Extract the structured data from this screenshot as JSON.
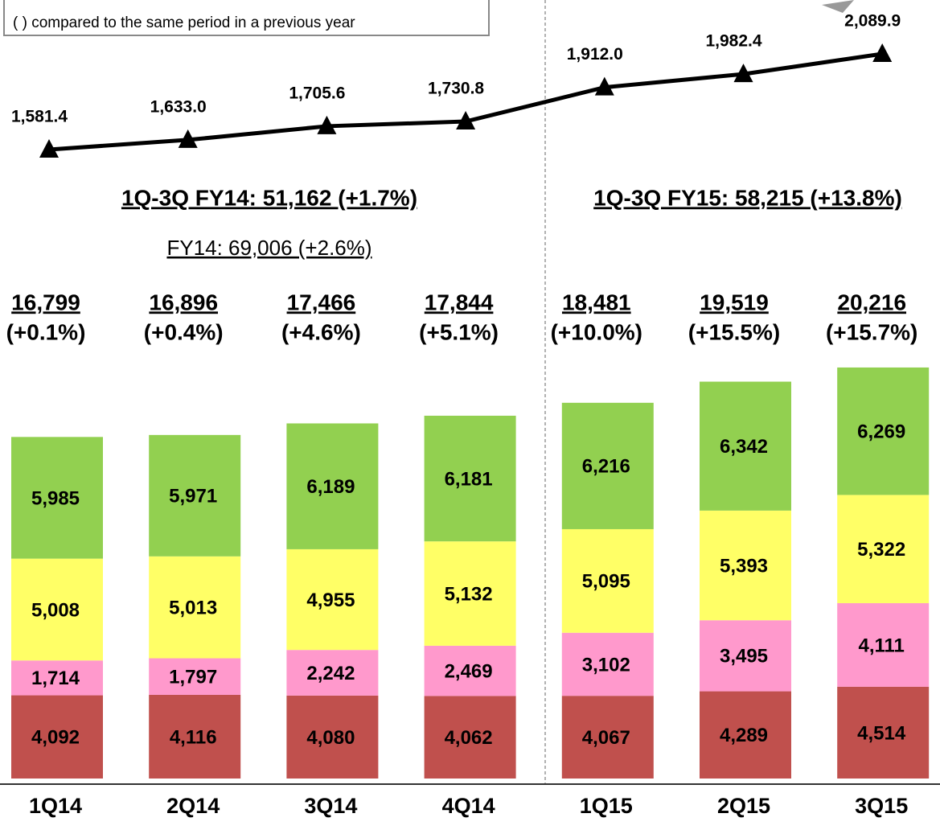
{
  "chart_data": {
    "type": "stacked_bar_line",
    "note": "(     ) compared to the same period in a previous year",
    "period_fy14": "1Q-3Q FY14: 51,162 (+1.7%)",
    "period_fy15": "1Q-3Q FY15: 58,215 (+13.8%)",
    "full_fy14": "FY14: 69,006 (+2.6%)",
    "categories": [
      "1Q14",
      "2Q14",
      "3Q14",
      "4Q14",
      "1Q15",
      "2Q15",
      "3Q15"
    ],
    "series": [
      {
        "color": "#c0504d",
        "values": [
          4092,
          4116,
          4080,
          4062,
          4067,
          4289,
          4514
        ],
        "value_labels": [
          "4,092",
          "4,116",
          "4,080",
          "4,062",
          "4,067",
          "4,289",
          "4,514"
        ]
      },
      {
        "color": "#ff99cc",
        "values": [
          1714,
          1797,
          2242,
          2469,
          3102,
          3495,
          4111
        ],
        "value_labels": [
          "1,714",
          "1,797",
          "2,242",
          "2,469",
          "3,102",
          "3,495",
          "4,111"
        ]
      },
      {
        "color": "#ffff66",
        "values": [
          5008,
          5013,
          4955,
          5132,
          5095,
          5393,
          5322
        ],
        "value_labels": [
          "5,008",
          "5,013",
          "4,955",
          "5,132",
          "5,095",
          "5,393",
          "5,322"
        ]
      },
      {
        "color": "#92d050",
        "values": [
          5985,
          5971,
          6189,
          6181,
          6216,
          6342,
          6269
        ],
        "value_labels": [
          "5,985",
          "5,971",
          "6,189",
          "6,181",
          "6,216",
          "6,342",
          "6,269"
        ]
      }
    ],
    "totals": {
      "values": [
        16799,
        16896,
        17466,
        17844,
        18481,
        19519,
        20216
      ],
      "value_labels": [
        "16,799",
        "16,896",
        "17,466",
        "17,844",
        "18,481",
        "19,519",
        "20,216"
      ]
    },
    "changes": [
      "(+0.1%)",
      "(+0.4%)",
      "(+4.6%)",
      "(+5.1%)",
      "(+10.0%)",
      "(+15.5%)",
      "(+15.7%)"
    ],
    "line": {
      "color": "#000000",
      "values": [
        1581.4,
        1633.0,
        1705.6,
        1730.8,
        1912.0,
        1982.4,
        2089.9
      ],
      "value_labels": [
        "1,581.4",
        "1,633.0",
        "1,705.6",
        "1,730.8",
        "1,912.0",
        "1,982.4",
        "2,089.9"
      ]
    }
  }
}
